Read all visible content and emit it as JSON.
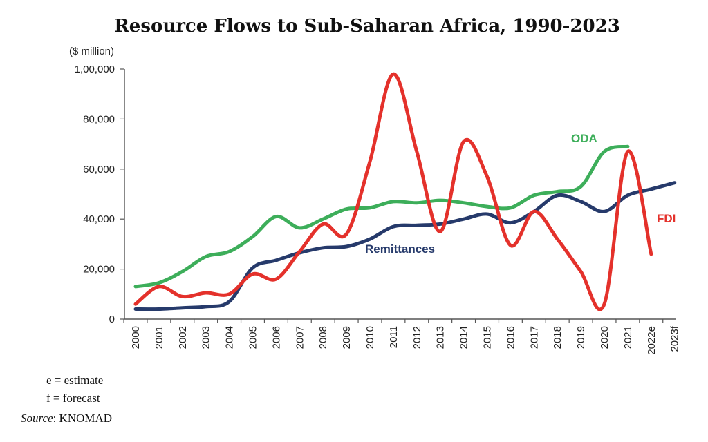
{
  "chart_data": {
    "type": "line",
    "title": "Resource Flows to Sub-Saharan Africa, 1990-2023",
    "unit_label": "($ million)",
    "x": [
      "2000",
      "2001",
      "2002",
      "2003",
      "2004",
      "2005",
      "2006",
      "2007",
      "2008",
      "2009",
      "2010",
      "2011",
      "2012",
      "2013",
      "2014",
      "2015",
      "2016",
      "2017",
      "2018",
      "2019",
      "2020",
      "2021",
      "2022e",
      "2023f"
    ],
    "ylim": [
      0,
      100000
    ],
    "yticks": [
      0,
      20000,
      40000,
      60000,
      80000,
      100000
    ],
    "ytick_labels": [
      "0",
      "20,000",
      "40,000",
      "60,000",
      "80,000",
      "1,00,000"
    ],
    "grid": false,
    "legend": "inline labels",
    "series": [
      {
        "name": "ODA",
        "color": "#3dae5a",
        "values": [
          13000,
          14500,
          19000,
          25000,
          27000,
          33000,
          41000,
          36500,
          40000,
          44000,
          44500,
          47000,
          46500,
          47500,
          46500,
          45000,
          44500,
          49500,
          51000,
          53000,
          67000,
          69000,
          null,
          null
        ]
      },
      {
        "name": "FDI",
        "color": "#e4312b",
        "values": [
          6000,
          13000,
          9000,
          10500,
          10000,
          18000,
          16000,
          27000,
          38000,
          34000,
          63000,
          98000,
          67000,
          35000,
          71000,
          57000,
          29500,
          43000,
          32000,
          19000,
          6000,
          67000,
          26000,
          null
        ]
      },
      {
        "name": "Remittances",
        "color": "#263a6b",
        "values": [
          4000,
          4000,
          4500,
          5000,
          7000,
          20500,
          23500,
          26500,
          28500,
          29000,
          32000,
          37000,
          37500,
          38000,
          40000,
          42000,
          38500,
          43000,
          49500,
          47000,
          43000,
          49500,
          52000,
          54500
        ]
      }
    ]
  },
  "notes": {
    "estimate": "e = estimate",
    "forecast": "f = forecast",
    "source_prefix": "Source",
    "source_value": ": KNOMAD"
  }
}
